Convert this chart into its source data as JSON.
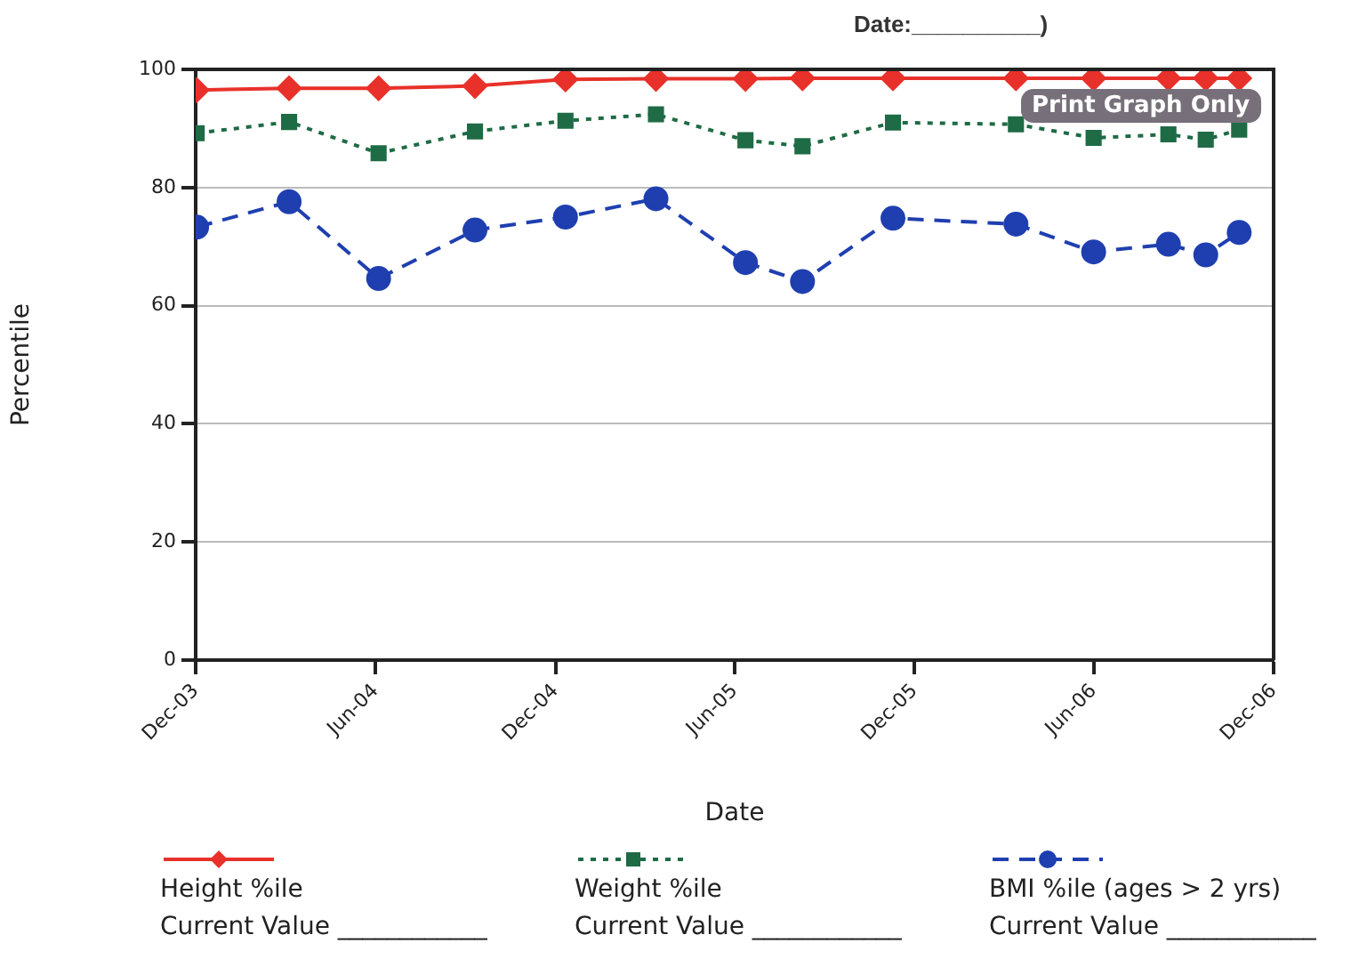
{
  "chart_data": {
    "type": "line",
    "title": "Date:__________)",
    "xlabel": "Date",
    "ylabel": "Percentile",
    "xlim": [
      "2003-12-01",
      "2006-12-01"
    ],
    "xticks": [
      {
        "value": "2003-12-01",
        "label": "Dec-03"
      },
      {
        "value": "2004-06-01",
        "label": "Jun-04"
      },
      {
        "value": "2004-12-01",
        "label": "Dec-04"
      },
      {
        "value": "2005-06-01",
        "label": "Jun-05"
      },
      {
        "value": "2005-12-01",
        "label": "Dec-05"
      },
      {
        "value": "2006-06-01",
        "label": "Jun-06"
      },
      {
        "value": "2006-12-01",
        "label": "Dec-06"
      }
    ],
    "ylim": [
      0,
      100
    ],
    "yticks": [
      0,
      20,
      40,
      60,
      80,
      100
    ],
    "grid": "y",
    "legend": "bottom",
    "x": [
      "2003-12-02",
      "2004-03-05",
      "2004-06-04",
      "2004-09-10",
      "2004-12-11",
      "2005-03-13",
      "2005-06-12",
      "2005-08-09",
      "2005-11-09",
      "2006-03-14",
      "2006-06-01",
      "2006-08-16",
      "2006-09-23",
      "2006-10-27"
    ],
    "series": [
      {
        "name": "Height %ile",
        "color": "#e8312a",
        "marker": "diamond",
        "line_style": "solid",
        "values": [
          96.5,
          96.8,
          96.8,
          97.2,
          98.3,
          98.4,
          98.4,
          98.5,
          98.5,
          98.5,
          98.5,
          98.5,
          98.5,
          98.5
        ]
      },
      {
        "name": "Weight %ile",
        "color": "#1e6b45",
        "marker": "square",
        "line_style": "dotted",
        "values": [
          89.2,
          91.1,
          85.8,
          89.5,
          91.3,
          92.4,
          88.0,
          87.0,
          91.0,
          90.7,
          88.4,
          89.0,
          88.1,
          89.8
        ]
      },
      {
        "name": "BMI %ile (ages > 2 yrs)",
        "color": "#1f3fb0",
        "marker": "circle",
        "line_style": "dashed",
        "values": [
          73.3,
          77.6,
          64.6,
          72.8,
          75.0,
          78.1,
          67.3,
          64.1,
          74.8,
          73.8,
          69.1,
          70.4,
          68.6,
          72.4
        ]
      }
    ],
    "annotations": [
      "Print Graph Only",
      "Current Value ____________",
      "Current Value ____________",
      "Current Value ____________"
    ]
  }
}
